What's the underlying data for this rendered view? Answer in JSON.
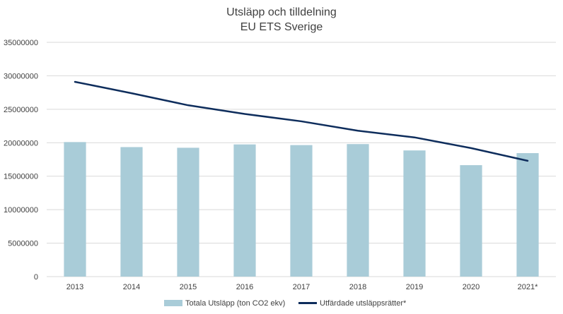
{
  "chart_data": {
    "type": "bar",
    "title": "Utsläpp och tilldelning",
    "subtitle": "EU ETS Sverige",
    "categories": [
      "2013",
      "2014",
      "2015",
      "2016",
      "2017",
      "2018",
      "2019",
      "2020",
      "2021*"
    ],
    "series": [
      {
        "name": "Totala Utsläpp (ton CO2 ekv)",
        "type": "bar",
        "color": "#a9ccd8",
        "values": [
          20100000,
          19350000,
          19250000,
          19750000,
          19650000,
          19800000,
          18850000,
          16650000,
          18450000
        ]
      },
      {
        "name": "Utfärdade utsläppsrätter*",
        "type": "line",
        "color": "#0e2d5c",
        "values": [
          29100000,
          27400000,
          25600000,
          24300000,
          23200000,
          21800000,
          20800000,
          19200000,
          17300000
        ]
      }
    ],
    "y_ticks": [
      "0",
      "5000000",
      "10000000",
      "15000000",
      "20000000",
      "25000000",
      "30000000",
      "35000000"
    ],
    "ylim": [
      0,
      35000000
    ],
    "grid": true,
    "legend_position": "bottom"
  }
}
